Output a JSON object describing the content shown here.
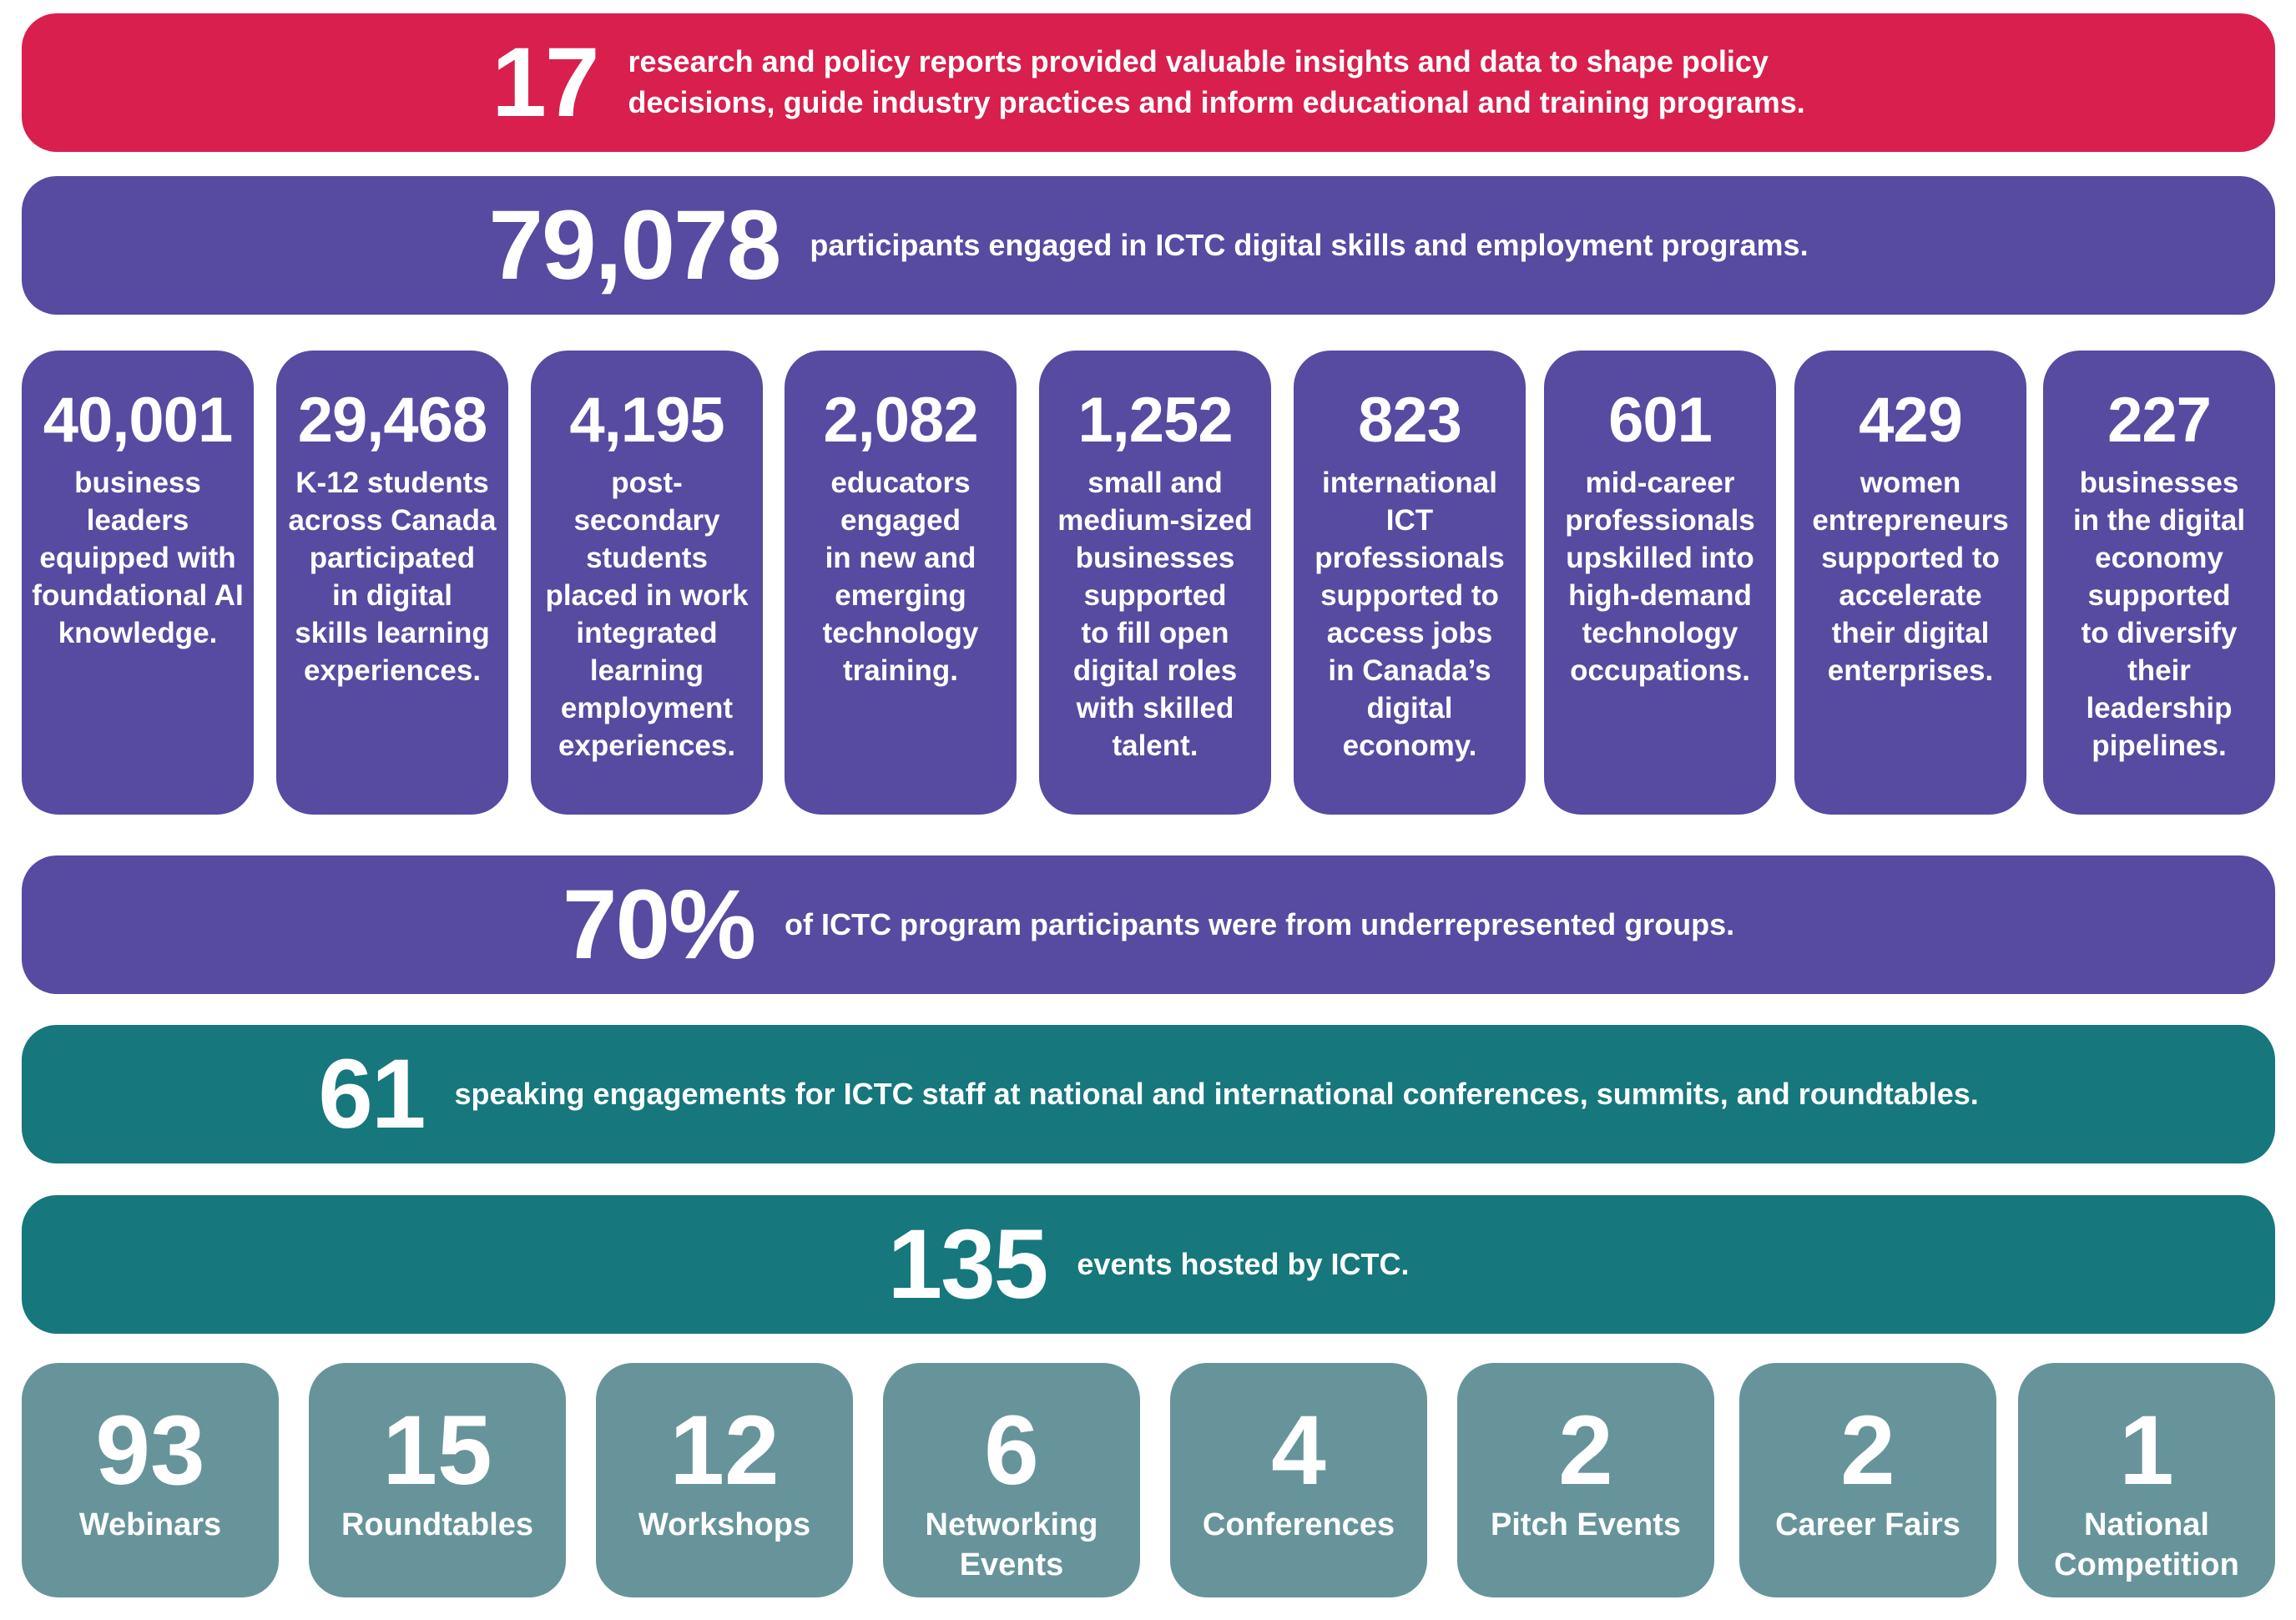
{
  "colors": {
    "red": "#d81f4d",
    "purple": "#574aa1",
    "teal": "#16777c",
    "slate": "#67949a"
  },
  "reports": {
    "number": "17",
    "text": "research and policy reports provided valuable insights and data to shape policy\ndecisions, guide industry practices and inform educational and training programs."
  },
  "participants": {
    "number": "79,078",
    "text": "participants engaged in ICTC digital skills and employment programs."
  },
  "breakdown": [
    {
      "number": "40,001",
      "text": "business\nleaders\nequipped with\nfoundational AI\nknowledge."
    },
    {
      "number": "29,468",
      "text": "K-12 students\nacross Canada\nparticipated\nin digital\nskills learning\nexperiences."
    },
    {
      "number": "4,195",
      "text": "post-\nsecondary\nstudents\nplaced in work\nintegrated\nlearning\nemployment\nexperiences."
    },
    {
      "number": "2,082",
      "text": "educators\nengaged\nin new and\nemerging\ntechnology\ntraining."
    },
    {
      "number": "1,252",
      "text": "small and\nmedium-sized\nbusinesses\nsupported\nto fill open\ndigital roles\nwith skilled\ntalent."
    },
    {
      "number": "823",
      "text": "international\nICT\nprofessionals\nsupported to\naccess jobs\nin Canada’s\ndigital\neconomy."
    },
    {
      "number": "601",
      "text": "mid-career\nprofessionals\nupskilled into\nhigh-demand\ntechnology\noccupations."
    },
    {
      "number": "429",
      "text": "women\nentrepreneurs\nsupported to\naccelerate\ntheir digital\nenterprises."
    },
    {
      "number": "227",
      "text": "businesses\nin the digital\neconomy\nsupported\nto diversify\ntheir\nleadership\npipelines."
    }
  ],
  "underrepresented": {
    "number": "70%",
    "text": "of ICTC program participants were from underrepresented groups."
  },
  "speaking": {
    "number": "61",
    "text": "speaking engagements for ICTC staff at national and international conferences, summits, and roundtables."
  },
  "events": {
    "number": "135",
    "text": "events hosted by ICTC."
  },
  "event_types": [
    {
      "number": "93",
      "label": "Webinars"
    },
    {
      "number": "15",
      "label": "Roundtables"
    },
    {
      "number": "12",
      "label": "Workshops"
    },
    {
      "number": "6",
      "label": "Networking\nEvents"
    },
    {
      "number": "4",
      "label": "Conferences"
    },
    {
      "number": "2",
      "label": "Pitch Events"
    },
    {
      "number": "2",
      "label": "Career Fairs"
    },
    {
      "number": "1",
      "label": "National\nCompetition"
    }
  ]
}
